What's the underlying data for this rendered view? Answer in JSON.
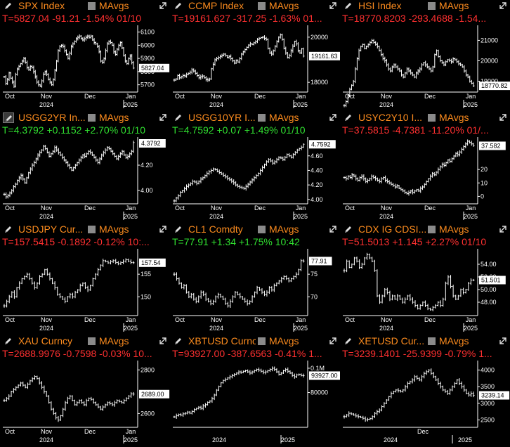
{
  "colors": {
    "background": "#000000",
    "security": "#fb8b1e",
    "negative": "#ff3030",
    "positive": "#30e030",
    "ohlc": "#ffffff"
  },
  "icons": {
    "edit": "pencil-icon",
    "expand": "expand-arrow-icon",
    "toggle": "checkbox"
  },
  "panels": [
    {
      "security": "SPX Index",
      "ma_label": "MAvgs",
      "quote": "T=5827.04 -91.21 -1.54% 01/10",
      "direction": "negative",
      "last_label": "5827.04",
      "y_ticks": [
        "6100",
        "6000",
        "5900",
        "5800",
        "5700"
      ],
      "x_months": [
        "Oct",
        "Nov",
        "Dec",
        "Jan"
      ],
      "x_years": [
        "2024",
        "2025"
      ]
    },
    {
      "security": "CCMP Index",
      "ma_label": "MAvgs",
      "quote": "T=19161.627 -317.25 -1.63% 01...",
      "direction": "negative",
      "last_label": "19161.63",
      "y_ticks": [
        "20000",
        "18000"
      ],
      "x_months": [
        "Oct",
        "Nov",
        "Dec",
        "Jan"
      ],
      "x_years": [
        "2024",
        "2025"
      ]
    },
    {
      "security": "HSI Index",
      "ma_label": "MAvgs",
      "quote": "T=18770.8203 -293.4688 -1.54...",
      "direction": "negative",
      "last_label": "18770.82",
      "y_ticks": [
        "21000",
        "20000",
        "19000"
      ],
      "x_months": [
        "Oct",
        "Nov",
        "Dec",
        "Jan"
      ],
      "x_years": [
        "2024",
        "2025"
      ]
    },
    {
      "security": "USGG2YR In...",
      "ma_label": "MAvgs",
      "quote": "T=4.3792 +0.1152 +2.70% 01/10",
      "direction": "positive",
      "last_label": "4.3792",
      "y_ticks": [
        "4.20",
        "4.00"
      ],
      "x_months": [
        "Oct",
        "Nov",
        "Dec",
        "Jan"
      ],
      "x_years": [
        "2024",
        "2025"
      ]
    },
    {
      "security": "USGG10YR I...",
      "ma_label": "MAvgs",
      "quote": "T=4.7592 +0.07 +1.49% 01/10",
      "direction": "positive",
      "last_label": "4.7592",
      "y_ticks": [
        "4.60",
        "4.40",
        "4.20",
        "4.00"
      ],
      "x_months": [
        "Oct",
        "Nov",
        "Dec",
        "Jan"
      ],
      "x_years": [
        "2024",
        "2025"
      ]
    },
    {
      "security": "USYC2Y10 I...",
      "ma_label": "MAvgs",
      "quote": "T=37.5815 -4.7381 -11.20% 01/...",
      "direction": "negative",
      "last_label": "37.582",
      "y_ticks": [
        "20",
        "10",
        "0"
      ],
      "x_months": [
        "Oct",
        "Nov",
        "Dec",
        "Jan"
      ],
      "x_years": [
        "2024",
        "2025"
      ]
    },
    {
      "security": "USDJPY Cur...",
      "ma_label": "MAvgs",
      "quote": "T=157.5415 -0.1892 -0.12% 10:...",
      "direction": "negative",
      "last_label": "157.54",
      "y_ticks": [
        "155",
        "150"
      ],
      "x_months": [
        "Oct",
        "Nov",
        "Dec",
        "Jan"
      ],
      "x_years": [
        "2024",
        "2025"
      ]
    },
    {
      "security": "CL1 Comdty",
      "ma_label": "MAvgs",
      "quote": "T=77.91 +1.34 +1.75% 10:42",
      "direction": "positive",
      "last_label": "77.91",
      "y_ticks": [
        "75",
        "70"
      ],
      "x_months": [
        "Oct",
        "Nov",
        "Dec",
        "Jan"
      ],
      "x_years": [
        "2024",
        "2025"
      ]
    },
    {
      "security": "CDX IG CDSI...",
      "ma_label": "MAvgs",
      "quote": "T=51.5013 +1.145 +2.27% 01/10",
      "direction": "negative",
      "last_label": "51.501",
      "y_ticks": [
        "54.00",
        "52.00",
        "50.00",
        "48.00"
      ],
      "x_months": [
        "Oct",
        "Nov",
        "Dec",
        "Jan"
      ],
      "x_years": [
        "2024",
        "2025"
      ]
    },
    {
      "security": "XAU Curncy",
      "ma_label": "MAvgs",
      "quote": "T=2688.9976 -0.7598 -0.03% 10...",
      "direction": "negative",
      "last_label": "2689.00",
      "y_ticks": [
        "2800",
        "2600"
      ],
      "x_months": [
        "Oct",
        "Nov",
        "Dec",
        "Jan"
      ],
      "x_years": [
        "2024",
        "2025"
      ]
    },
    {
      "security": "XBTUSD Curncy",
      "ma_label": "MAvgs",
      "quote": "T=93927.00 -387.6563 -0.41% 1...",
      "direction": "negative",
      "last_label": "93927.00",
      "y_ticks": [
        "0.1M",
        "80000"
      ],
      "x_months": [],
      "x_years": [
        "2024",
        "2025"
      ]
    },
    {
      "security": "XETUSD Cur...",
      "ma_label": "MAvgs",
      "quote": "T=3239.1401 -25.9399 -0.79% 1...",
      "direction": "negative",
      "last_label": "3239.14",
      "y_ticks": [
        "4000",
        "3500",
        "3000",
        "2500"
      ],
      "x_months": [
        "Dec"
      ],
      "x_years": [
        "2024",
        "2025"
      ]
    }
  ],
  "chart_data": [
    {
      "type": "ohlc",
      "title": "SPX Index",
      "ylim": [
        5650,
        6130
      ],
      "close": [
        5760,
        5710,
        5740,
        5790,
        5750,
        5720,
        5690,
        5780,
        5820,
        5840,
        5860,
        5880,
        5900,
        5870,
        5830,
        5815,
        5840,
        5830,
        5800,
        5760,
        5720,
        5700,
        5690,
        5730,
        5780,
        5800,
        5780,
        5740,
        5720,
        5700,
        5740,
        5810,
        5880,
        5960,
        5990,
        6000,
        5990,
        5960,
        5930,
        5900,
        5940,
        5990,
        6010,
        6030,
        6050,
        6060,
        6070,
        6050,
        6040,
        6050,
        6060,
        6070,
        6060,
        6070,
        6040,
        6020,
        6010,
        5990,
        5950,
        5880,
        5870,
        5900,
        5960,
        6010,
        6030,
        6020,
        6000,
        5950,
        5930,
        5970,
        6000,
        6020,
        5980,
        5920,
        5880,
        5860,
        5900,
        5918,
        5870,
        5827
      ]
    },
    {
      "type": "ohlc",
      "title": "CCMP Index",
      "ylim": [
        17600,
        20400
      ],
      "close": [
        18100,
        18150,
        18300,
        18200,
        18250,
        18300,
        18280,
        18350,
        18400,
        18450,
        18550,
        18500,
        18400,
        18300,
        18200,
        18250,
        18280,
        18200,
        18120,
        18100,
        18150,
        18600,
        18800,
        19000,
        19050,
        19100,
        19150,
        19200,
        19250,
        19180,
        19100,
        19150,
        19050,
        18950,
        18850,
        18980,
        18900,
        19050,
        19250,
        19350,
        19450,
        19550,
        19650,
        19700,
        19680,
        19750,
        19800,
        19900,
        19950,
        19980,
        20000,
        19950,
        19900,
        19500,
        19300,
        19250,
        19400,
        19600,
        19800,
        20000,
        20100,
        19900,
        19500,
        19300,
        19100,
        19200,
        19400,
        19600,
        19800,
        19700,
        19400,
        19300,
        19480,
        19161
      ]
    },
    {
      "type": "ohlc",
      "title": "HSI Index",
      "ylim": [
        18500,
        21600
      ],
      "close": [
        17800,
        18000,
        18300,
        18600,
        18800,
        19000,
        19600,
        20100,
        20500,
        20700,
        20800,
        20600,
        20700,
        20800,
        20900,
        21000,
        20900,
        20800,
        20700,
        20500,
        20300,
        20100,
        20000,
        19800,
        19600,
        19500,
        19700,
        19800,
        19700,
        19600,
        19500,
        19300,
        19200,
        19400,
        19600,
        19500,
        19400,
        19300,
        19200,
        19400,
        19500,
        19600,
        19800,
        19900,
        19800,
        19700,
        19600,
        19500,
        19700,
        20300,
        20500,
        20200,
        20000,
        19900,
        19800,
        19950,
        20050,
        20000,
        19950,
        20100,
        20050,
        19950,
        19850,
        19800,
        19700,
        19500,
        19300,
        19200,
        19000,
        18900,
        18771
      ]
    },
    {
      "type": "ohlc",
      "title": "USGG2YR Index",
      "ylim": [
        3.9,
        4.4
      ],
      "close": [
        3.97,
        3.95,
        3.96,
        3.98,
        4.0,
        4.03,
        4.05,
        4.08,
        4.1,
        4.12,
        4.09,
        4.06,
        4.1,
        4.14,
        4.17,
        4.2,
        4.22,
        4.25,
        4.28,
        4.3,
        4.32,
        4.35,
        4.33,
        4.3,
        4.27,
        4.29,
        4.31,
        4.34,
        4.32,
        4.3,
        4.28,
        4.26,
        4.24,
        4.22,
        4.2,
        4.18,
        4.16,
        4.18,
        4.2,
        4.22,
        4.24,
        4.26,
        4.28,
        4.27,
        4.29,
        4.31,
        4.3,
        4.28,
        4.26,
        4.24,
        4.22,
        4.25,
        4.28,
        4.3,
        4.32,
        4.34,
        4.33,
        4.31,
        4.29,
        4.27,
        4.25,
        4.27,
        4.29,
        4.31,
        4.28,
        4.26,
        4.27,
        4.29,
        4.31,
        4.3792
      ]
    },
    {
      "type": "ohlc",
      "title": "USGG10YR Index",
      "ylim": [
        3.95,
        4.82
      ],
      "close": [
        3.98,
        4.02,
        4.05,
        4.1,
        4.12,
        4.15,
        4.18,
        4.2,
        4.22,
        4.25,
        4.24,
        4.22,
        4.25,
        4.28,
        4.3,
        4.33,
        4.36,
        4.38,
        4.4,
        4.42,
        4.41,
        4.39,
        4.37,
        4.35,
        4.33,
        4.31,
        4.29,
        4.27,
        4.25,
        4.23,
        4.2,
        4.18,
        4.17,
        4.16,
        4.15,
        4.18,
        4.21,
        4.24,
        4.27,
        4.3,
        4.33,
        4.36,
        4.4,
        4.44,
        4.48,
        4.52,
        4.55,
        4.53,
        4.5,
        4.52,
        4.55,
        4.58,
        4.57,
        4.55,
        4.58,
        4.62,
        4.6,
        4.58,
        4.62,
        4.65,
        4.68,
        4.7,
        4.72,
        4.7592
      ]
    },
    {
      "type": "ohlc",
      "title": "USYC2Y10 Index",
      "ylim": [
        -5,
        42
      ],
      "close": [
        14,
        13,
        15,
        14,
        16,
        15,
        13,
        12,
        14,
        15,
        13,
        11,
        12,
        13,
        15,
        14,
        13,
        12,
        11,
        13,
        14,
        12,
        11,
        10,
        9,
        8,
        7,
        8,
        6,
        5,
        4,
        3,
        2,
        3,
        4,
        3,
        4,
        5,
        4,
        6,
        7,
        9,
        11,
        13,
        15,
        17,
        16,
        18,
        20,
        22,
        24,
        23,
        25,
        27,
        26,
        28,
        30,
        32,
        31,
        33,
        35,
        37,
        39,
        41,
        40,
        39,
        37.58
      ]
    },
    {
      "type": "ohlc",
      "title": "USDJPY Curncy",
      "ylim": [
        146,
        160
      ],
      "close": [
        148,
        149,
        150,
        151,
        150,
        152,
        153,
        154,
        154.5,
        155,
        154,
        153,
        152,
        153,
        154.5,
        155,
        156,
        155,
        154,
        153,
        152,
        150.5,
        150,
        149.5,
        149,
        150,
        150.5,
        150,
        151,
        151.5,
        152.5,
        153,
        152,
        151.5,
        152.5,
        154,
        155,
        156,
        157,
        158,
        157.8,
        157.5,
        157.8,
        158,
        157.6,
        157.3,
        157.6,
        157.9,
        158.2,
        157.9,
        157.6,
        157.54
      ]
    },
    {
      "type": "ohlc",
      "title": "CL1 Comdty",
      "ylim": [
        66,
        80
      ],
      "close": [
        75,
        74,
        73,
        72,
        72.5,
        71,
        70,
        70.5,
        69.5,
        69,
        70,
        71,
        70.5,
        69.5,
        69,
        68.5,
        69,
        70,
        70.5,
        70,
        69.5,
        68.5,
        68,
        69,
        70,
        71,
        70.5,
        70,
        69.5,
        69,
        68.5,
        69,
        70,
        71,
        72,
        71.5,
        71,
        70.5,
        71,
        72,
        71.5,
        72.5,
        73,
        73.5,
        74,
        74.5,
        74,
        73.5,
        74,
        74.5,
        75,
        76,
        78,
        77.91
      ]
    },
    {
      "type": "ohlc",
      "title": "CDX IG CDSI GEN 5Y Corp",
      "ylim": [
        46,
        56
      ],
      "close": [
        53,
        54.5,
        53.5,
        54,
        55,
        54.5,
        53.5,
        54,
        55,
        55.5,
        55,
        54.5,
        53,
        49,
        48,
        49,
        50,
        49.5,
        48.5,
        49,
        48.5,
        49,
        48.5,
        48,
        48.5,
        49,
        48.5,
        48,
        47.5,
        47,
        47.5,
        48,
        47.5,
        47,
        46.8,
        47.2,
        47.5,
        48,
        47.5,
        48.5,
        51,
        52,
        50.5,
        49,
        48.5,
        49,
        50,
        49.5,
        50,
        51,
        51.5,
        51.501
      ]
    },
    {
      "type": "ohlc",
      "title": "XAU Curncy",
      "ylim": [
        2540,
        2830
      ],
      "close": [
        2660,
        2670,
        2680,
        2700,
        2710,
        2720,
        2730,
        2740,
        2730,
        2720,
        2735,
        2750,
        2760,
        2770,
        2760,
        2740,
        2720,
        2700,
        2680,
        2650,
        2620,
        2600,
        2580,
        2570,
        2590,
        2620,
        2650,
        2670,
        2680,
        2660,
        2640,
        2650,
        2660,
        2650,
        2640,
        2660,
        2670,
        2665,
        2650,
        2640,
        2630,
        2620,
        2630,
        2640,
        2650,
        2645,
        2640,
        2650,
        2660,
        2655,
        2650,
        2660,
        2670,
        2680,
        2690,
        2689
      ]
    },
    {
      "type": "ohlc",
      "title": "XBTUSD Curncy",
      "ylim": [
        52000,
        104000
      ],
      "close": [
        60000,
        61000,
        62000,
        61500,
        62500,
        63000,
        64000,
        63000,
        64500,
        66000,
        67000,
        68000,
        67000,
        69000,
        70000,
        72000,
        73000,
        75000,
        78000,
        82000,
        85000,
        88000,
        90000,
        91000,
        92000,
        93000,
        94000,
        95000,
        96000,
        97000,
        96500,
        97500,
        98000,
        97000,
        96000,
        97000,
        98000,
        99000,
        98500,
        97500,
        96500,
        97000,
        98000,
        99000,
        100000,
        99000,
        97000,
        95000,
        96000,
        98000,
        99000,
        97500,
        96000,
        94000,
        93000,
        94500,
        95000,
        94000,
        93927
      ]
    },
    {
      "type": "ohlc",
      "title": "XETUSD Curncy",
      "ylim": [
        2300,
        4200
      ],
      "close": [
        2600,
        2650,
        2700,
        2680,
        2650,
        2620,
        2600,
        2580,
        2550,
        2500,
        2520,
        2540,
        2600,
        2700,
        2750,
        2800,
        2900,
        3000,
        3100,
        3200,
        3300,
        3350,
        3400,
        3380,
        3350,
        3400,
        3500,
        3600,
        3650,
        3700,
        3800,
        3750,
        3700,
        3800,
        3900,
        3950,
        4000,
        3900,
        3800,
        3700,
        3600,
        3500,
        3400,
        3350,
        3300,
        3400,
        3500,
        3600,
        3700,
        3600,
        3500,
        3400,
        3300,
        3250,
        3300,
        3239
      ]
    }
  ]
}
